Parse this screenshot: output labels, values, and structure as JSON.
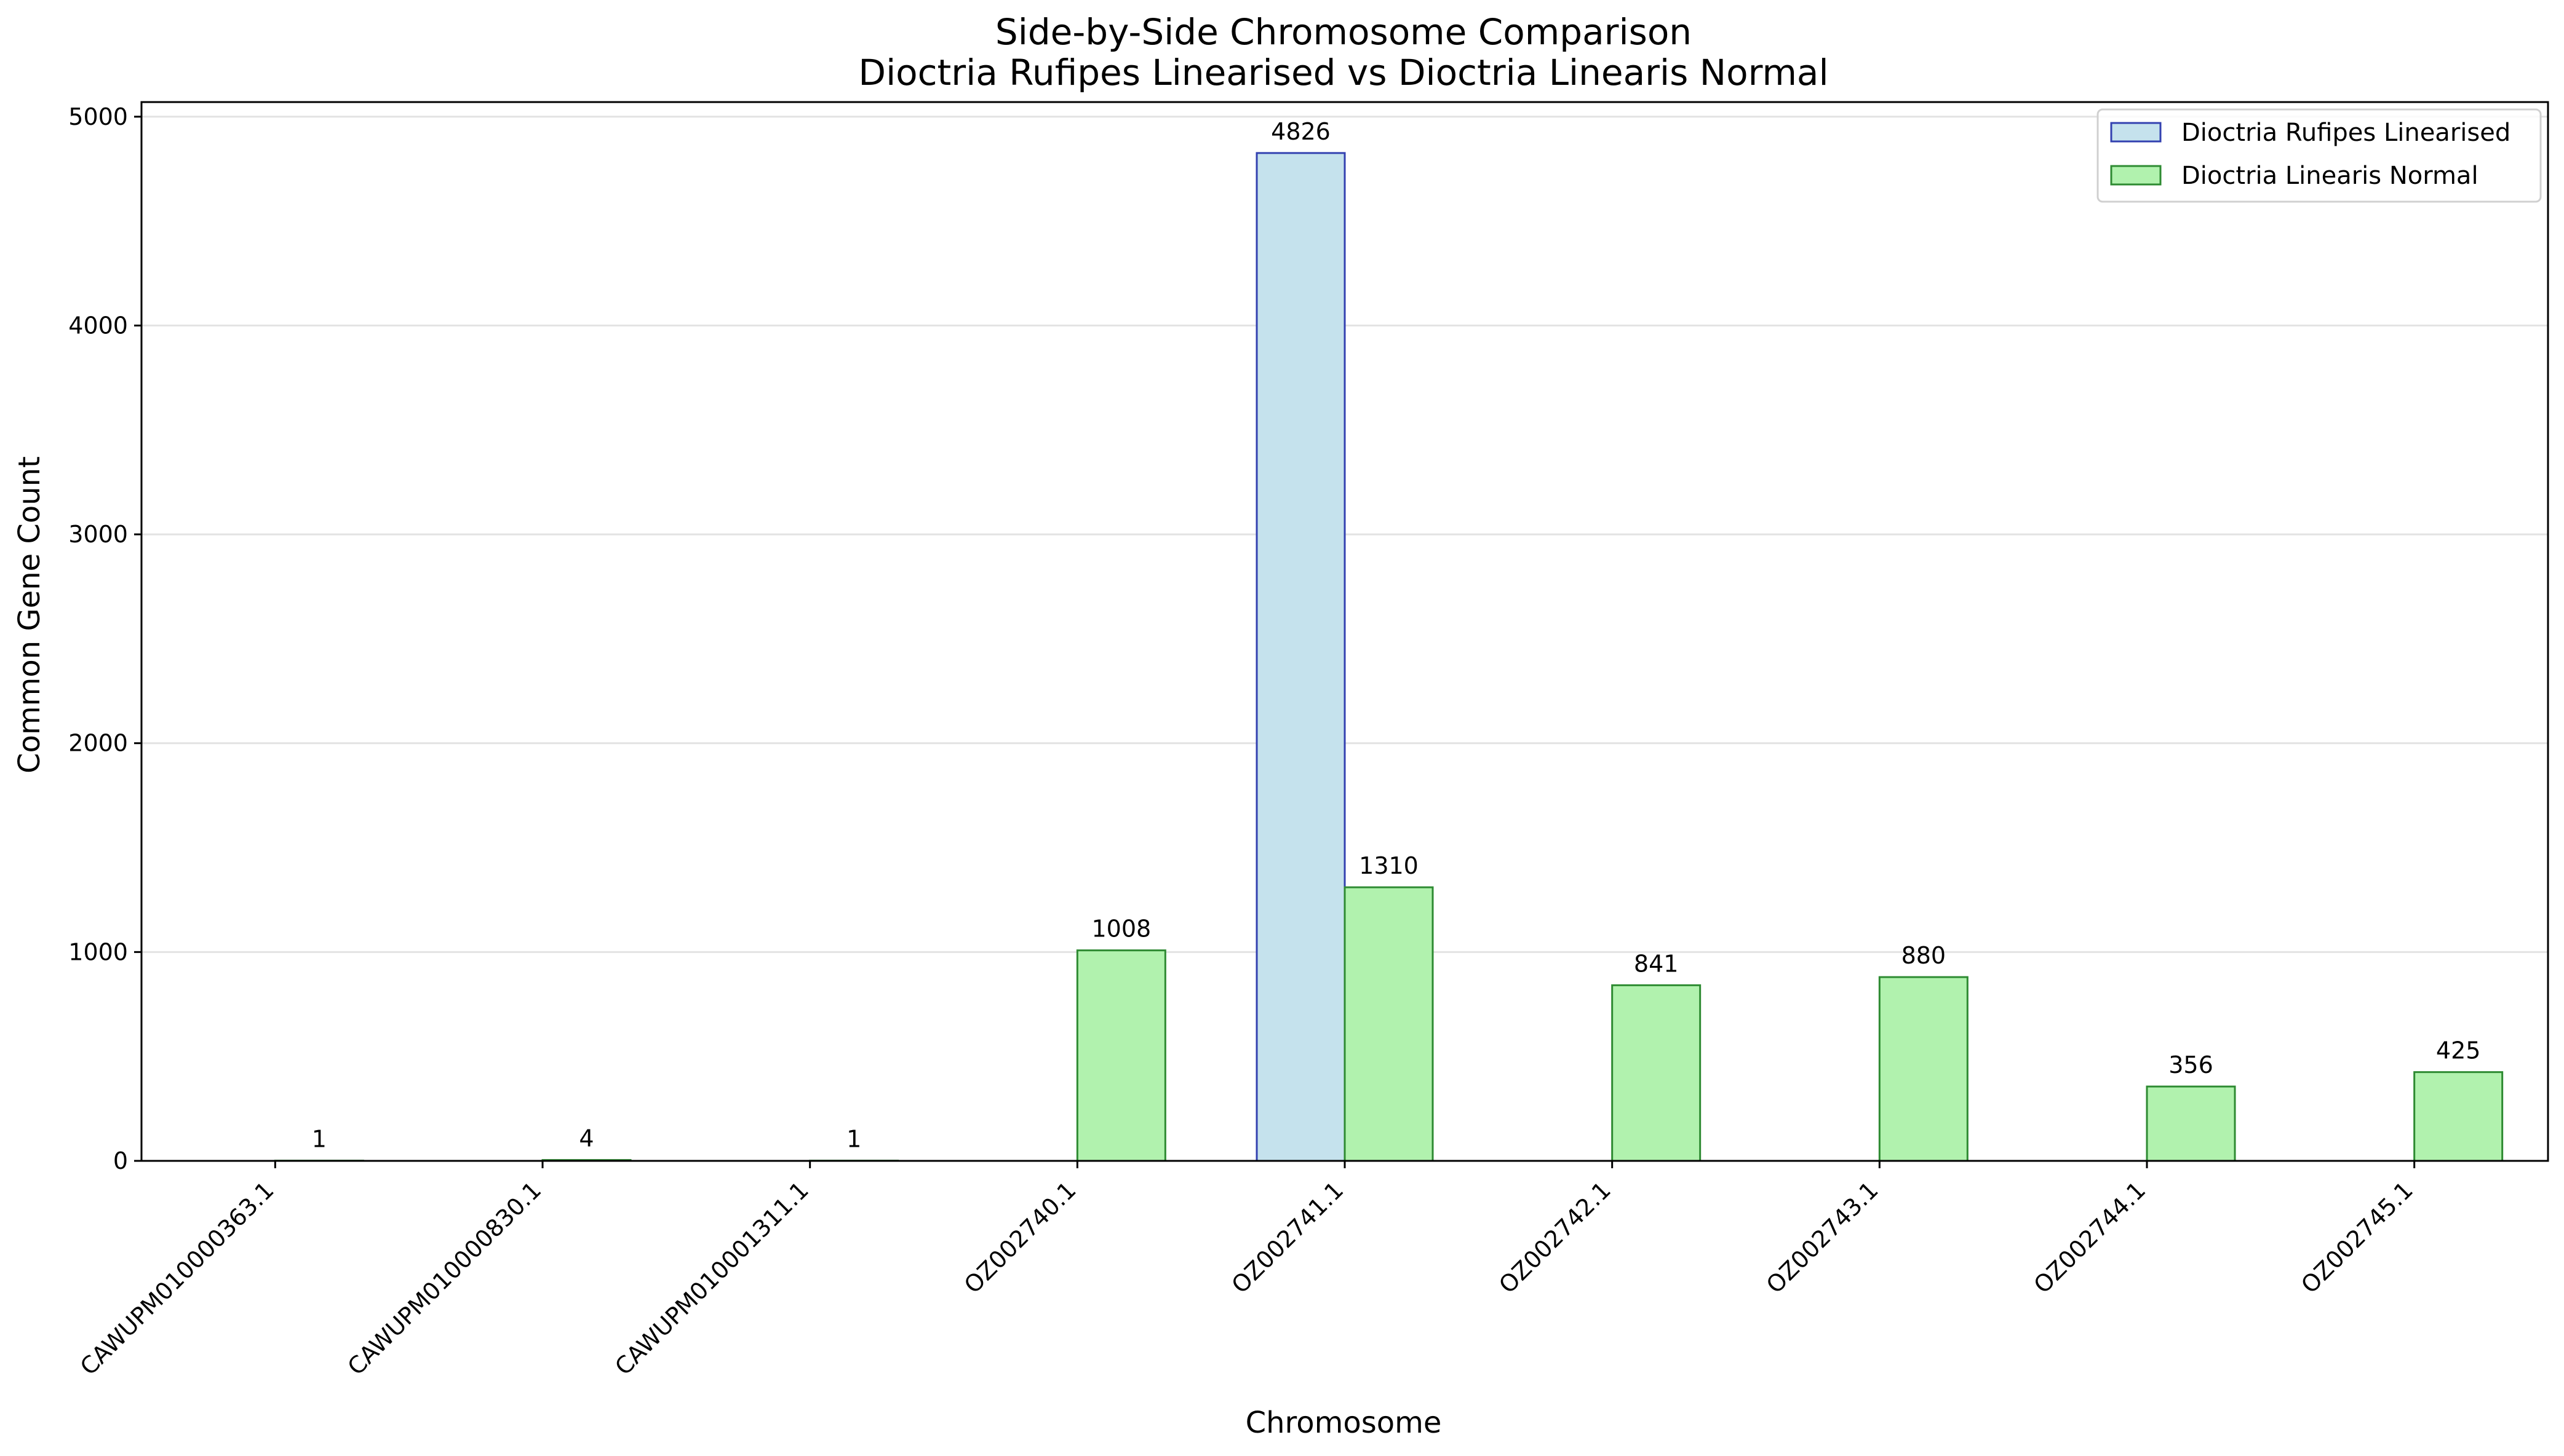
{
  "chart_data": {
    "type": "bar",
    "title": "Side-by-Side Chromosome Comparison",
    "subtitle": "Dioctria Rufipes Linearised vs Dioctria Linearis Normal",
    "xlabel": "Chromosome",
    "ylabel": "Common Gene Count",
    "categories": [
      "CAWUPM010000363.1",
      "CAWUPM010000830.1",
      "CAWUPM010001311.1",
      "OZ002740.1",
      "OZ002741.1",
      "OZ002742.1",
      "OZ002743.1",
      "OZ002744.1",
      "OZ002745.1"
    ],
    "series": [
      {
        "name": "Dioctria Rufipes Linearised",
        "values": [
          0,
          0,
          0,
          0,
          4826,
          0,
          0,
          0,
          0
        ],
        "labels": [
          "",
          "",
          "",
          "",
          "4826",
          "",
          "",
          "",
          ""
        ],
        "fill": "#c5e2ed",
        "stroke": "#3341b0"
      },
      {
        "name": "Dioctria Linearis Normal",
        "values": [
          1,
          4,
          1,
          1008,
          1310,
          841,
          880,
          356,
          425
        ],
        "labels": [
          "1",
          "4",
          "1",
          "1008",
          "1310",
          "841",
          "880",
          "356",
          "425"
        ],
        "fill": "#b1f2ae",
        "stroke": "#2e8b32"
      }
    ],
    "ylim": [
      0,
      5070
    ],
    "yticks": [
      0,
      1000,
      2000,
      3000,
      4000,
      5000
    ],
    "ytick_labels": [
      "0",
      "1000",
      "2000",
      "3000",
      "4000",
      "5000"
    ],
    "grid": "horizontal",
    "legend": "top-right"
  }
}
